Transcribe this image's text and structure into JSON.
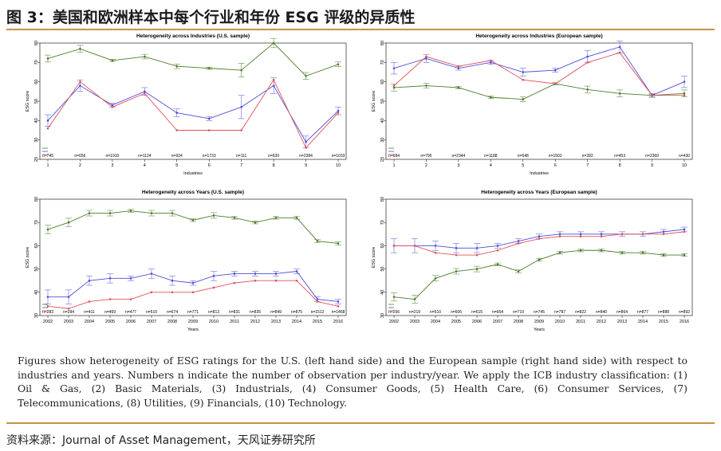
{
  "header": {
    "title": "图 3：美国和欧洲样本中每个行业和年份 ESG 评级的异质性"
  },
  "caption": "Figures show heterogeneity of ESG ratings for the U.S. (left hand side) and the European sample (right hand side) with respect to industries and years. Numbers n indicate the number of observation per industry/year. We apply the ICB industry classification: (1) Oil & Gas, (2) Basic Materials, (3) Industrials, (4) Consumer Goods, (5) Health Care, (6) Consumer Services, (7) Telecommunications, (8) Utilities, (9) Financials, (10) Technology.",
  "source": "资料来源：Journal of Asset Management，天风证券研究所",
  "colors": {
    "accent": "#c8923e",
    "green": "#4a7d2a",
    "blue": "#4d4dd9",
    "red": "#e0525a"
  },
  "chart_data": [
    {
      "type": "line",
      "title": "Heterogeneity across Industries (U.S. sample)",
      "xlabel": "Industries",
      "ylabel": "ESG score",
      "ylim": [
        20,
        80
      ],
      "yticks": [
        20,
        30,
        40,
        50,
        60,
        70,
        80
      ],
      "categories": [
        "1",
        "2",
        "3",
        "4",
        "5",
        "6",
        "7",
        "8",
        "9",
        "10"
      ],
      "n_labels": [
        "n=745",
        "n=656",
        "n=1910",
        "n=1124",
        "n=924",
        "n=1733",
        "n=111",
        "n=630",
        "n=2384",
        "n=1033"
      ],
      "series": [
        {
          "color": "green",
          "values": [
            72,
            77,
            71,
            73,
            68,
            67,
            66,
            80,
            63,
            69
          ]
        },
        {
          "color": "blue",
          "values": [
            40,
            58,
            48,
            55,
            44,
            41,
            47,
            58,
            29,
            45
          ]
        },
        {
          "color": "red",
          "values": [
            36,
            60,
            47,
            54,
            35,
            35,
            35,
            61,
            26,
            44
          ]
        }
      ],
      "err": [
        3,
        3,
        1,
        2,
        2,
        1,
        6,
        4,
        3,
        2
      ]
    },
    {
      "type": "line",
      "title": "Heterogeneity across Industries (European sample)",
      "xlabel": "Industries",
      "ylabel": "ESG score",
      "ylim": [
        20,
        80
      ],
      "yticks": [
        20,
        30,
        40,
        50,
        60,
        70,
        80
      ],
      "categories": [
        "1",
        "2",
        "3",
        "4",
        "5",
        "6",
        "7",
        "8",
        "9",
        "10"
      ],
      "n_labels": [
        "n=684",
        "n=795",
        "n=2344",
        "n=1188",
        "n=648",
        "n=1502",
        "n=282",
        "n=453",
        "n=2369",
        "n=430"
      ],
      "series": [
        {
          "color": "green",
          "values": [
            57,
            58,
            57,
            52,
            51,
            59,
            56,
            54,
            53,
            54
          ]
        },
        {
          "color": "blue",
          "values": [
            67,
            72,
            67,
            70,
            65,
            66,
            73,
            78,
            53,
            60
          ]
        },
        {
          "color": "red",
          "values": [
            58,
            73,
            68,
            71,
            61,
            59,
            70,
            75,
            53,
            53
          ]
        }
      ],
      "err": [
        3,
        2,
        1,
        1,
        2,
        1,
        3,
        3,
        1,
        3
      ]
    },
    {
      "type": "line",
      "title": "Heterogeneity across Years (U.S. sample)",
      "xlabel": "Years",
      "ylabel": "ESG score",
      "ylim": [
        30,
        80
      ],
      "yticks": [
        30,
        40,
        50,
        60,
        70,
        80
      ],
      "categories": [
        "2002",
        "2003",
        "2004",
        "2005",
        "2006",
        "2007",
        "2008",
        "2009",
        "2010",
        "2011",
        "2012",
        "2013",
        "2014",
        "2015",
        "2016"
      ],
      "n_labels": [
        "n=283",
        "n=284",
        "n=411",
        "n=469",
        "n=477",
        "n=510",
        "n=674",
        "n=771",
        "n=813",
        "n=831",
        "n=835",
        "n=849",
        "n=875",
        "n=1512",
        "n=1468"
      ],
      "series": [
        {
          "color": "green",
          "values": [
            67,
            70,
            74,
            74,
            75,
            74,
            74,
            71,
            73,
            72,
            70,
            72,
            72,
            62,
            61
          ]
        },
        {
          "color": "blue",
          "values": [
            38,
            38,
            45,
            46,
            46,
            48,
            45,
            44,
            47,
            48,
            48,
            48,
            49,
            37,
            36
          ]
        },
        {
          "color": "red",
          "values": [
            34,
            33,
            36,
            37,
            37,
            40,
            40,
            40,
            42,
            44,
            45,
            45,
            45,
            36,
            34
          ]
        }
      ],
      "err": [
        3,
        3,
        2,
        2,
        1,
        2,
        2,
        1,
        2,
        1,
        1,
        1,
        1,
        1,
        1
      ]
    },
    {
      "type": "line",
      "title": "Heterogeneity across Years (European sample)",
      "xlabel": "Years",
      "ylabel": "ESG score",
      "ylim": [
        30,
        80
      ],
      "yticks": [
        30,
        40,
        50,
        60,
        70,
        80
      ],
      "categories": [
        "2002",
        "2003",
        "2004",
        "2005",
        "2006",
        "2007",
        "2008",
        "2009",
        "2010",
        "2011",
        "2012",
        "2013",
        "2014",
        "2015",
        "2016"
      ],
      "n_labels": [
        "n=256",
        "n=219",
        "n=510",
        "n=606",
        "n=615",
        "n=664",
        "n=710",
        "n=745",
        "n=787",
        "n=822",
        "n=840",
        "n=864",
        "n=877",
        "n=888",
        "n=892"
      ],
      "series": [
        {
          "color": "green",
          "values": [
            38,
            37,
            46,
            49,
            50,
            52,
            49,
            54,
            57,
            58,
            58,
            57,
            57,
            56,
            56
          ]
        },
        {
          "color": "blue",
          "values": [
            60,
            60,
            60,
            59,
            59,
            60,
            62,
            64,
            65,
            65,
            65,
            65,
            65,
            66,
            67
          ]
        },
        {
          "color": "red",
          "values": [
            60,
            60,
            57,
            56,
            56,
            58,
            61,
            63,
            64,
            64,
            64,
            65,
            65,
            65,
            66
          ]
        }
      ],
      "err": [
        3,
        3,
        2,
        2,
        2,
        1,
        1,
        1,
        1,
        1,
        1,
        1,
        1,
        1,
        1
      ]
    }
  ]
}
